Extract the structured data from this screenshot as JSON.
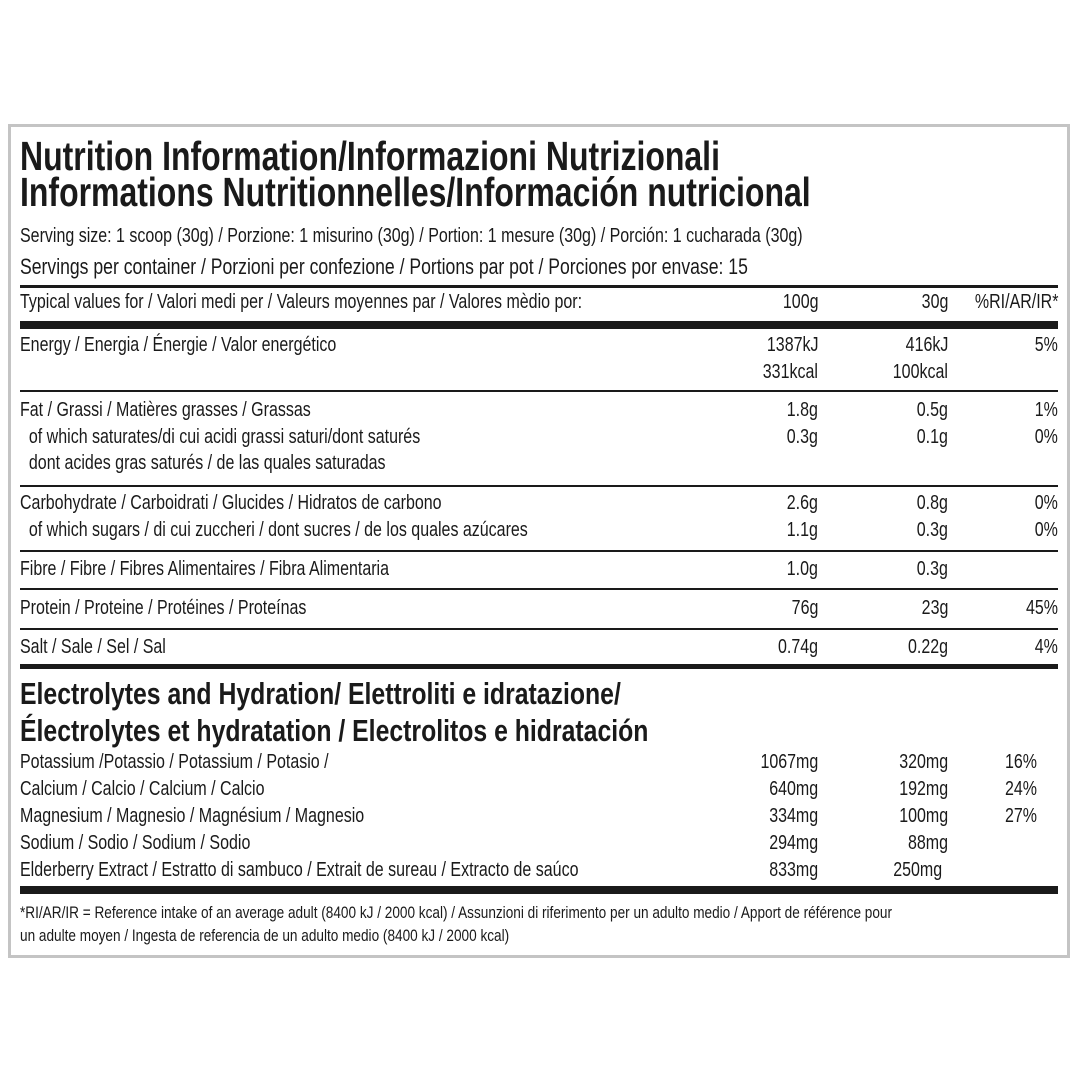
{
  "title": {
    "line1": "Nutrition Information/Informazioni Nutrizionali",
    "line2": "Informations Nutritionnelles/Información nutricional"
  },
  "serving_size": "Serving size: 1 scoop (30g) / Porzione: 1 misurino (30g) / Portion: 1 mesure (30g) / Porción: 1 cucharada (30g)",
  "servings_per_container": "Servings per container / Porzioni per confezione / Portions par pot / Porciones por envase: 15",
  "header": {
    "label": "Typical values for / Valori medi per / Valeurs moyennes par / Valores mèdio por:",
    "col_100g": "100g",
    "col_30g": "30g",
    "col_ri": "%RI/AR/IR*"
  },
  "nutrients": [
    {
      "lines": [
        [
          "Energy / Energia / Énergie / Valor energético",
          "1387kJ",
          "416kJ",
          "5%"
        ],
        [
          "",
          "331kcal",
          "100kcal",
          ""
        ]
      ]
    },
    {
      "lines": [
        [
          "Fat / Grassi / Matières grasses / Grassas",
          "1.8g",
          "0.5g",
          "1%"
        ],
        [
          "  of which saturates/di cui acidi grassi saturi/dont saturés",
          "0.3g",
          "0.1g",
          "0%"
        ],
        [
          "  dont acides gras saturés / de las quales saturadas",
          "",
          "",
          ""
        ]
      ]
    },
    {
      "lines": [
        [
          "Carbohydrate / Carboidrati / Glucides / Hidratos de carbono",
          "2.6g",
          "0.8g",
          "0%"
        ],
        [
          "  of which sugars / di cui zuccheri / dont sucres / de los quales azúcares",
          "1.1g",
          "0.3g",
          "0%"
        ]
      ]
    },
    {
      "lines": [
        [
          "Fibre / Fibre / Fibres Alimentaires / Fibra Alimentaria",
          "1.0g",
          "0.3g",
          ""
        ]
      ]
    },
    {
      "lines": [
        [
          "Protein / Proteine / Protéines / Proteínas",
          "76g",
          "23g",
          "45%"
        ]
      ]
    },
    {
      "lines": [
        [
          "Salt / Sale / Sel / Sal",
          "0.74g",
          "0.22g",
          "4%"
        ]
      ]
    }
  ],
  "electrolytes": {
    "title_line1": "Electrolytes and Hydration/ Elettroliti e idratazione/",
    "title_line2": "Électrolytes et hydratation / Electrolitos e hidratación",
    "rows": [
      [
        "Potassium /Potassio / Potassium / Potasio /",
        "1067mg",
        "320mg",
        "16%"
      ],
      [
        "Calcium / Calcio / Calcium / Calcio",
        "640mg",
        "192mg",
        "24%"
      ],
      [
        "Magnesium / Magnesio / Magnésium / Magnesio",
        "334mg",
        "100mg",
        "27%"
      ],
      [
        "Sodium / Sodio / Sodium / Sodio",
        "294mg",
        "88mg",
        ""
      ],
      [
        "Elderberry Extract / Estratto di sambuco / Extrait de sureau / Extracto de saúco",
        "833mg",
        "250mg",
        ""
      ]
    ]
  },
  "footnote": {
    "line1": "*RI/AR/IR = Reference intake of an average adult (8400 kJ / 2000 kcal)  / Assunzioni di riferimento per un adulto medio / Apport de référence pour",
    "line2": "un adulte moyen / Ingesta de referencia de un adulto medio (8400 kJ / 2000 kcal)"
  }
}
